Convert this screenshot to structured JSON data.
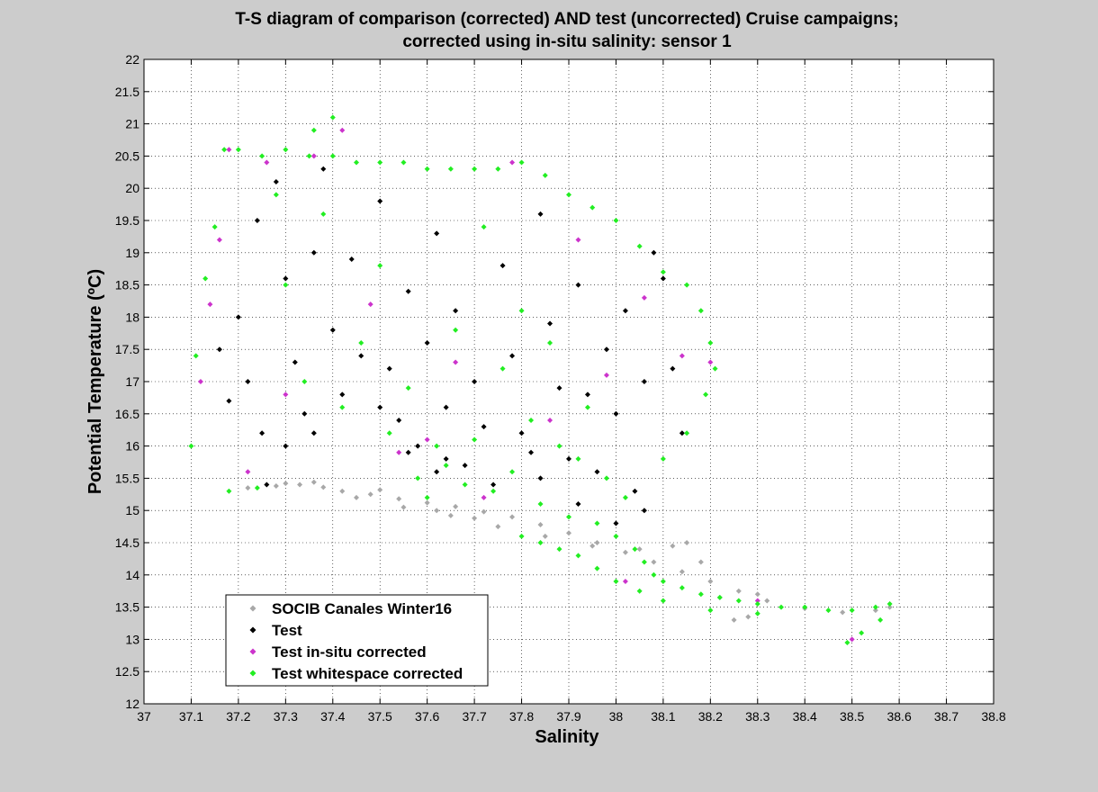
{
  "chart_data": {
    "type": "scatter",
    "title": [
      "T-S diagram of comparison (corrected) AND test (uncorrected) Cruise campaigns;",
      "corrected using in-situ salinity: sensor 1"
    ],
    "xlabel": "Salinity",
    "ylabel": "Potential Temperature (ºC)",
    "xlim": [
      37,
      38.8
    ],
    "ylim": [
      12,
      22
    ],
    "xticks": [
      "37",
      "37.1",
      "37.2",
      "37.3",
      "37.4",
      "37.5",
      "37.6",
      "37.7",
      "37.8",
      "37.9",
      "38",
      "38.1",
      "38.2",
      "38.3",
      "38.4",
      "38.5",
      "38.6",
      "38.7",
      "38.8"
    ],
    "yticks": [
      "12",
      "12.5",
      "13",
      "13.5",
      "14",
      "14.5",
      "15",
      "15.5",
      "16",
      "16.5",
      "17",
      "17.5",
      "18",
      "18.5",
      "19",
      "19.5",
      "20",
      "20.5",
      "21",
      "21.5",
      "22"
    ],
    "grid": true,
    "legend_position": "lower-left",
    "series": [
      {
        "name": "SOCIB Canales Winter16",
        "color": "#a8a8a8",
        "marker": "diamond",
        "points": [
          [
            37.22,
            15.35
          ],
          [
            37.28,
            15.38
          ],
          [
            37.33,
            15.4
          ],
          [
            37.38,
            15.36
          ],
          [
            37.42,
            15.3
          ],
          [
            37.48,
            15.25
          ],
          [
            37.54,
            15.18
          ],
          [
            37.6,
            15.12
          ],
          [
            37.66,
            15.06
          ],
          [
            37.72,
            14.98
          ],
          [
            37.78,
            14.9
          ],
          [
            37.84,
            14.78
          ],
          [
            37.9,
            14.65
          ],
          [
            37.96,
            14.5
          ],
          [
            38.02,
            14.35
          ],
          [
            38.08,
            14.2
          ],
          [
            38.14,
            14.05
          ],
          [
            38.2,
            13.9
          ],
          [
            38.26,
            13.75
          ],
          [
            38.32,
            13.6
          ],
          [
            38.4,
            13.48
          ],
          [
            38.48,
            13.42
          ],
          [
            38.55,
            13.45
          ],
          [
            38.58,
            13.5
          ],
          [
            37.45,
            15.2
          ],
          [
            37.55,
            15.05
          ],
          [
            37.65,
            14.92
          ],
          [
            37.75,
            14.75
          ],
          [
            37.85,
            14.6
          ],
          [
            37.95,
            14.45
          ],
          [
            38.05,
            14.4
          ],
          [
            38.12,
            14.45
          ],
          [
            38.15,
            14.5
          ],
          [
            38.18,
            14.2
          ],
          [
            38.22,
            13.65
          ],
          [
            38.28,
            13.35
          ],
          [
            38.3,
            13.7
          ],
          [
            38.25,
            13.3
          ],
          [
            37.3,
            15.42
          ],
          [
            37.36,
            15.44
          ],
          [
            37.5,
            15.32
          ],
          [
            37.62,
            15.0
          ],
          [
            37.7,
            14.88
          ]
        ]
      },
      {
        "name": "Test",
        "color": "#000000",
        "marker": "diamond",
        "points": [
          [
            37.2,
            18.0
          ],
          [
            37.22,
            17.0
          ],
          [
            37.24,
            19.5
          ],
          [
            37.25,
            16.2
          ],
          [
            37.28,
            20.1
          ],
          [
            37.3,
            18.6
          ],
          [
            37.32,
            17.3
          ],
          [
            37.34,
            16.5
          ],
          [
            37.36,
            19.0
          ],
          [
            37.38,
            20.3
          ],
          [
            37.4,
            17.8
          ],
          [
            37.42,
            16.8
          ],
          [
            37.44,
            18.9
          ],
          [
            37.46,
            17.4
          ],
          [
            37.5,
            19.8
          ],
          [
            37.52,
            17.2
          ],
          [
            37.54,
            16.4
          ],
          [
            37.56,
            18.4
          ],
          [
            37.58,
            16.0
          ],
          [
            37.6,
            17.6
          ],
          [
            37.62,
            19.3
          ],
          [
            37.64,
            16.6
          ],
          [
            37.66,
            18.1
          ],
          [
            37.68,
            15.7
          ],
          [
            37.7,
            17.0
          ],
          [
            37.72,
            16.3
          ],
          [
            37.74,
            15.4
          ],
          [
            37.76,
            18.8
          ],
          [
            37.78,
            17.4
          ],
          [
            37.8,
            16.2
          ],
          [
            37.82,
            15.9
          ],
          [
            37.84,
            19.6
          ],
          [
            37.86,
            17.9
          ],
          [
            37.88,
            16.9
          ],
          [
            37.9,
            15.8
          ],
          [
            37.92,
            18.5
          ],
          [
            37.94,
            16.8
          ],
          [
            37.96,
            15.6
          ],
          [
            37.98,
            17.5
          ],
          [
            38.0,
            16.5
          ],
          [
            38.02,
            18.1
          ],
          [
            38.04,
            15.3
          ],
          [
            38.06,
            17.0
          ],
          [
            38.08,
            19.0
          ],
          [
            38.1,
            18.6
          ],
          [
            38.12,
            17.2
          ],
          [
            38.14,
            16.2
          ],
          [
            38.06,
            15.0
          ],
          [
            38.0,
            14.8
          ],
          [
            37.92,
            15.1
          ],
          [
            37.84,
            15.5
          ],
          [
            37.62,
            15.6
          ],
          [
            37.56,
            15.9
          ],
          [
            37.26,
            15.4
          ],
          [
            37.18,
            16.7
          ],
          [
            37.16,
            17.5
          ],
          [
            37.3,
            16.0
          ],
          [
            37.36,
            16.2
          ],
          [
            37.5,
            16.6
          ],
          [
            37.64,
            15.8
          ]
        ]
      },
      {
        "name": "Test in-situ corrected",
        "color": "#cc33cc",
        "marker": "diamond",
        "points": [
          [
            37.12,
            17.0
          ],
          [
            37.14,
            18.2
          ],
          [
            37.16,
            19.2
          ],
          [
            37.18,
            20.6
          ],
          [
            37.22,
            15.6
          ],
          [
            37.26,
            20.4
          ],
          [
            37.3,
            16.8
          ],
          [
            37.36,
            20.5
          ],
          [
            37.42,
            20.9
          ],
          [
            37.48,
            18.2
          ],
          [
            37.54,
            15.9
          ],
          [
            37.6,
            16.1
          ],
          [
            37.66,
            17.3
          ],
          [
            37.72,
            15.2
          ],
          [
            37.78,
            20.4
          ],
          [
            37.86,
            16.4
          ],
          [
            37.92,
            19.2
          ],
          [
            37.98,
            17.1
          ],
          [
            38.06,
            18.3
          ],
          [
            38.14,
            17.4
          ],
          [
            38.2,
            17.3
          ],
          [
            38.02,
            13.9
          ],
          [
            38.3,
            13.6
          ],
          [
            38.5,
            13.0
          ]
        ]
      },
      {
        "name": "Test whitespace corrected",
        "color": "#22ee22",
        "marker": "diamond",
        "points": [
          [
            37.1,
            16.0
          ],
          [
            37.11,
            17.4
          ],
          [
            37.13,
            18.6
          ],
          [
            37.15,
            19.4
          ],
          [
            37.17,
            20.6
          ],
          [
            37.2,
            20.6
          ],
          [
            37.25,
            20.5
          ],
          [
            37.3,
            20.6
          ],
          [
            37.35,
            20.5
          ],
          [
            37.4,
            20.5
          ],
          [
            37.45,
            20.4
          ],
          [
            37.5,
            20.4
          ],
          [
            37.55,
            20.4
          ],
          [
            37.6,
            20.3
          ],
          [
            37.65,
            20.3
          ],
          [
            37.7,
            20.3
          ],
          [
            37.75,
            20.3
          ],
          [
            37.8,
            20.4
          ],
          [
            37.85,
            20.2
          ],
          [
            37.9,
            19.9
          ],
          [
            37.95,
            19.7
          ],
          [
            38.0,
            19.5
          ],
          [
            38.05,
            19.1
          ],
          [
            38.1,
            18.7
          ],
          [
            38.15,
            18.5
          ],
          [
            38.18,
            18.1
          ],
          [
            38.2,
            17.6
          ],
          [
            38.21,
            17.2
          ],
          [
            38.19,
            16.8
          ],
          [
            38.15,
            16.2
          ],
          [
            38.1,
            15.8
          ],
          [
            37.18,
            15.3
          ],
          [
            37.24,
            15.35
          ],
          [
            37.28,
            19.9
          ],
          [
            37.3,
            18.5
          ],
          [
            37.34,
            17.0
          ],
          [
            37.36,
            20.9
          ],
          [
            37.38,
            19.6
          ],
          [
            37.4,
            21.1
          ],
          [
            37.42,
            16.6
          ],
          [
            37.46,
            17.6
          ],
          [
            37.5,
            18.8
          ],
          [
            37.52,
            16.2
          ],
          [
            37.56,
            16.9
          ],
          [
            37.58,
            15.5
          ],
          [
            37.6,
            15.2
          ],
          [
            37.62,
            16.0
          ],
          [
            37.64,
            15.7
          ],
          [
            37.66,
            17.8
          ],
          [
            37.68,
            15.4
          ],
          [
            37.7,
            16.1
          ],
          [
            37.72,
            19.4
          ],
          [
            37.74,
            15.3
          ],
          [
            37.76,
            17.2
          ],
          [
            37.78,
            15.6
          ],
          [
            37.8,
            18.1
          ],
          [
            37.82,
            16.4
          ],
          [
            37.84,
            15.1
          ],
          [
            37.86,
            17.6
          ],
          [
            37.88,
            16.0
          ],
          [
            37.9,
            14.9
          ],
          [
            37.92,
            15.8
          ],
          [
            37.94,
            16.6
          ],
          [
            37.96,
            14.8
          ],
          [
            37.98,
            15.5
          ],
          [
            38.0,
            14.6
          ],
          [
            38.02,
            15.2
          ],
          [
            38.04,
            14.4
          ],
          [
            38.06,
            14.2
          ],
          [
            38.08,
            14.0
          ],
          [
            38.1,
            13.9
          ],
          [
            38.14,
            13.8
          ],
          [
            38.18,
            13.7
          ],
          [
            38.22,
            13.65
          ],
          [
            38.26,
            13.6
          ],
          [
            38.3,
            13.55
          ],
          [
            38.35,
            13.5
          ],
          [
            38.4,
            13.5
          ],
          [
            38.45,
            13.45
          ],
          [
            38.5,
            13.45
          ],
          [
            38.55,
            13.5
          ],
          [
            38.58,
            13.55
          ],
          [
            38.52,
            13.1
          ],
          [
            38.49,
            12.95
          ],
          [
            38.56,
            13.3
          ],
          [
            38.0,
            13.9
          ],
          [
            37.96,
            14.1
          ],
          [
            37.92,
            14.3
          ],
          [
            37.88,
            14.4
          ],
          [
            37.84,
            14.5
          ],
          [
            37.8,
            14.6
          ],
          [
            38.3,
            13.4
          ],
          [
            38.2,
            13.45
          ],
          [
            38.1,
            13.6
          ],
          [
            38.05,
            13.75
          ]
        ]
      }
    ]
  }
}
